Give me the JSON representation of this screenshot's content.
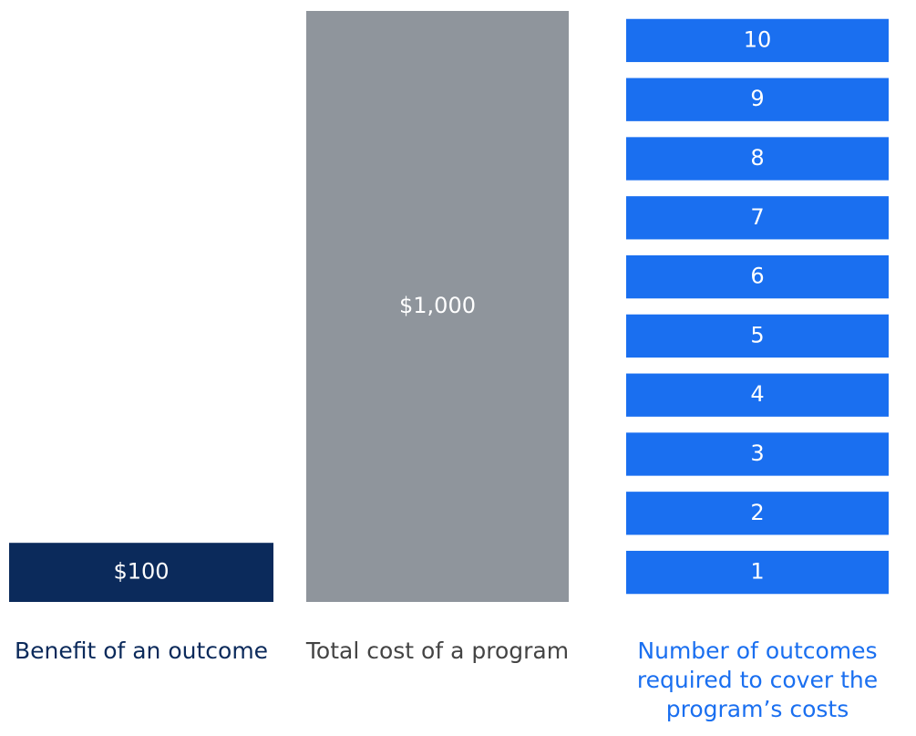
{
  "chart_data": {
    "type": "bar",
    "bars": [
      {
        "label": "Benefit of an outcome",
        "value": 100,
        "value_label": "$100",
        "color": "#0b2a5b"
      },
      {
        "label": "Total cost of a program",
        "value": 1000,
        "value_label": "$1,000",
        "color": "#8f959c"
      }
    ],
    "outcomes": {
      "label": "Number of outcomes required to cover the program’s costs",
      "count_labels": [
        1,
        2,
        3,
        4,
        5,
        6,
        7,
        8,
        9,
        10
      ],
      "color": "#1a6ff0"
    }
  }
}
